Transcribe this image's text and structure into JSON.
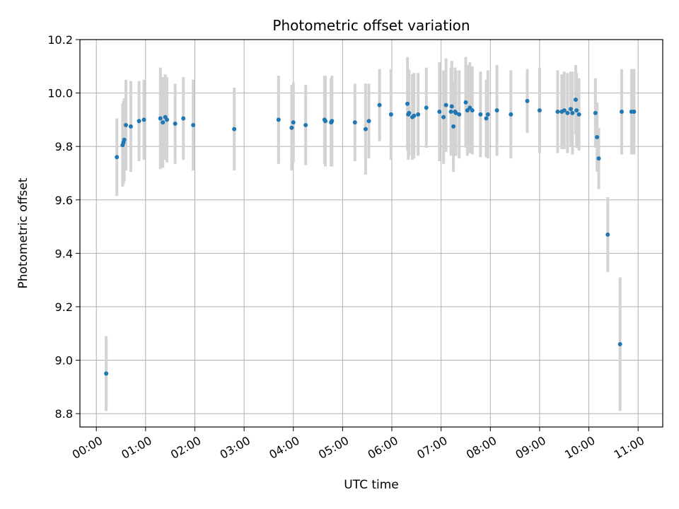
{
  "chart_data": {
    "type": "scatter",
    "title": "Photometric offset variation",
    "xlabel": "UTC time",
    "ylabel": "Photometric offset",
    "x_tick_labels": [
      "00:00",
      "01:00",
      "02:00",
      "03:00",
      "04:00",
      "05:00",
      "06:00",
      "07:00",
      "08:00",
      "09:00",
      "10:00",
      "11:00"
    ],
    "y_ticks": [
      8.8,
      9.0,
      9.2,
      9.4,
      9.6,
      9.8,
      10.0,
      10.2
    ],
    "y_tick_labels": [
      "8.8",
      "9.0",
      "9.2",
      "9.4",
      "9.6",
      "9.8",
      "10.0",
      "10.2"
    ],
    "xlim": [
      "-00:20",
      "11:30"
    ],
    "ylim": [
      8.75,
      10.2
    ],
    "grid": true,
    "colors": {
      "points": "#1f77b4",
      "errorbars": "#d3d3d3",
      "grid": "#b0b0b0"
    },
    "series": [
      {
        "x": [
          "00:12",
          "00:25",
          "00:32",
          "00:33",
          "00:34",
          "00:36",
          "00:42",
          "00:52",
          "00:58",
          "01:18",
          "01:21",
          "01:24",
          "01:26",
          "01:36",
          "01:46",
          "01:58",
          "02:48",
          "03:42",
          "03:58",
          "04:00",
          "04:15",
          "04:38",
          "04:39",
          "04:46",
          "04:47",
          "05:15",
          "05:28",
          "05:32",
          "05:45",
          "05:59",
          "06:19",
          "06:20",
          "06:21",
          "06:25",
          "06:27",
          "06:32",
          "06:42",
          "06:58",
          "07:03",
          "07:06",
          "07:12",
          "07:13",
          "07:15",
          "07:17",
          "07:18",
          "07:22",
          "07:30",
          "07:32",
          "07:35",
          "07:38",
          "07:48",
          "07:55",
          "07:57",
          "08:08",
          "08:25",
          "08:45",
          "09:00",
          "09:22",
          "09:27",
          "09:30",
          "09:34",
          "09:38",
          "09:40",
          "09:44",
          "09:45",
          "09:48",
          "10:08",
          "10:10",
          "10:12",
          "10:23",
          "10:38",
          "10:40",
          "10:52",
          "10:55"
        ],
        "y": [
          8.95,
          9.76,
          9.805,
          9.815,
          9.825,
          9.88,
          9.875,
          9.895,
          9.9,
          9.905,
          9.89,
          9.91,
          9.9,
          9.885,
          9.905,
          9.88,
          9.865,
          9.9,
          9.87,
          9.89,
          9.88,
          9.9,
          9.895,
          9.89,
          9.895,
          9.89,
          9.865,
          9.895,
          9.955,
          9.92,
          9.96,
          9.92,
          9.925,
          9.91,
          9.915,
          9.92,
          9.945,
          9.93,
          9.91,
          9.955,
          9.93,
          9.95,
          9.875,
          9.93,
          9.925,
          9.92,
          9.965,
          9.935,
          9.945,
          9.935,
          9.92,
          9.905,
          9.92,
          9.935,
          9.92,
          9.97,
          9.935,
          9.93,
          9.93,
          9.935,
          9.925,
          9.94,
          9.925,
          9.975,
          9.935,
          9.92,
          9.925,
          9.835,
          9.755,
          9.47,
          9.06,
          9.93,
          9.93,
          9.93
        ],
        "yerr": [
          0.14,
          0.145,
          0.155,
          0.155,
          0.155,
          0.17,
          0.17,
          0.15,
          0.15,
          0.19,
          0.17,
          0.16,
          0.16,
          0.15,
          0.155,
          0.17,
          0.155,
          0.165,
          0.16,
          0.15,
          0.15,
          0.165,
          0.17,
          0.165,
          0.17,
          0.145,
          0.17,
          0.14,
          0.135,
          0.17,
          0.175,
          0.17,
          0.16,
          0.16,
          0.16,
          0.155,
          0.15,
          0.185,
          0.175,
          0.175,
          0.165,
          0.17,
          0.17,
          0.165,
          0.16,
          0.165,
          0.17,
          0.17,
          0.17,
          0.165,
          0.16,
          0.145,
          0.165,
          0.17,
          0.165,
          0.12,
          0.16,
          0.155,
          0.14,
          0.145,
          0.15,
          0.14,
          0.155,
          0.13,
          0.14,
          0.135,
          0.13,
          0.13,
          0.115,
          0.14,
          0.25,
          0.16,
          0.16,
          0.16
        ]
      }
    ]
  }
}
